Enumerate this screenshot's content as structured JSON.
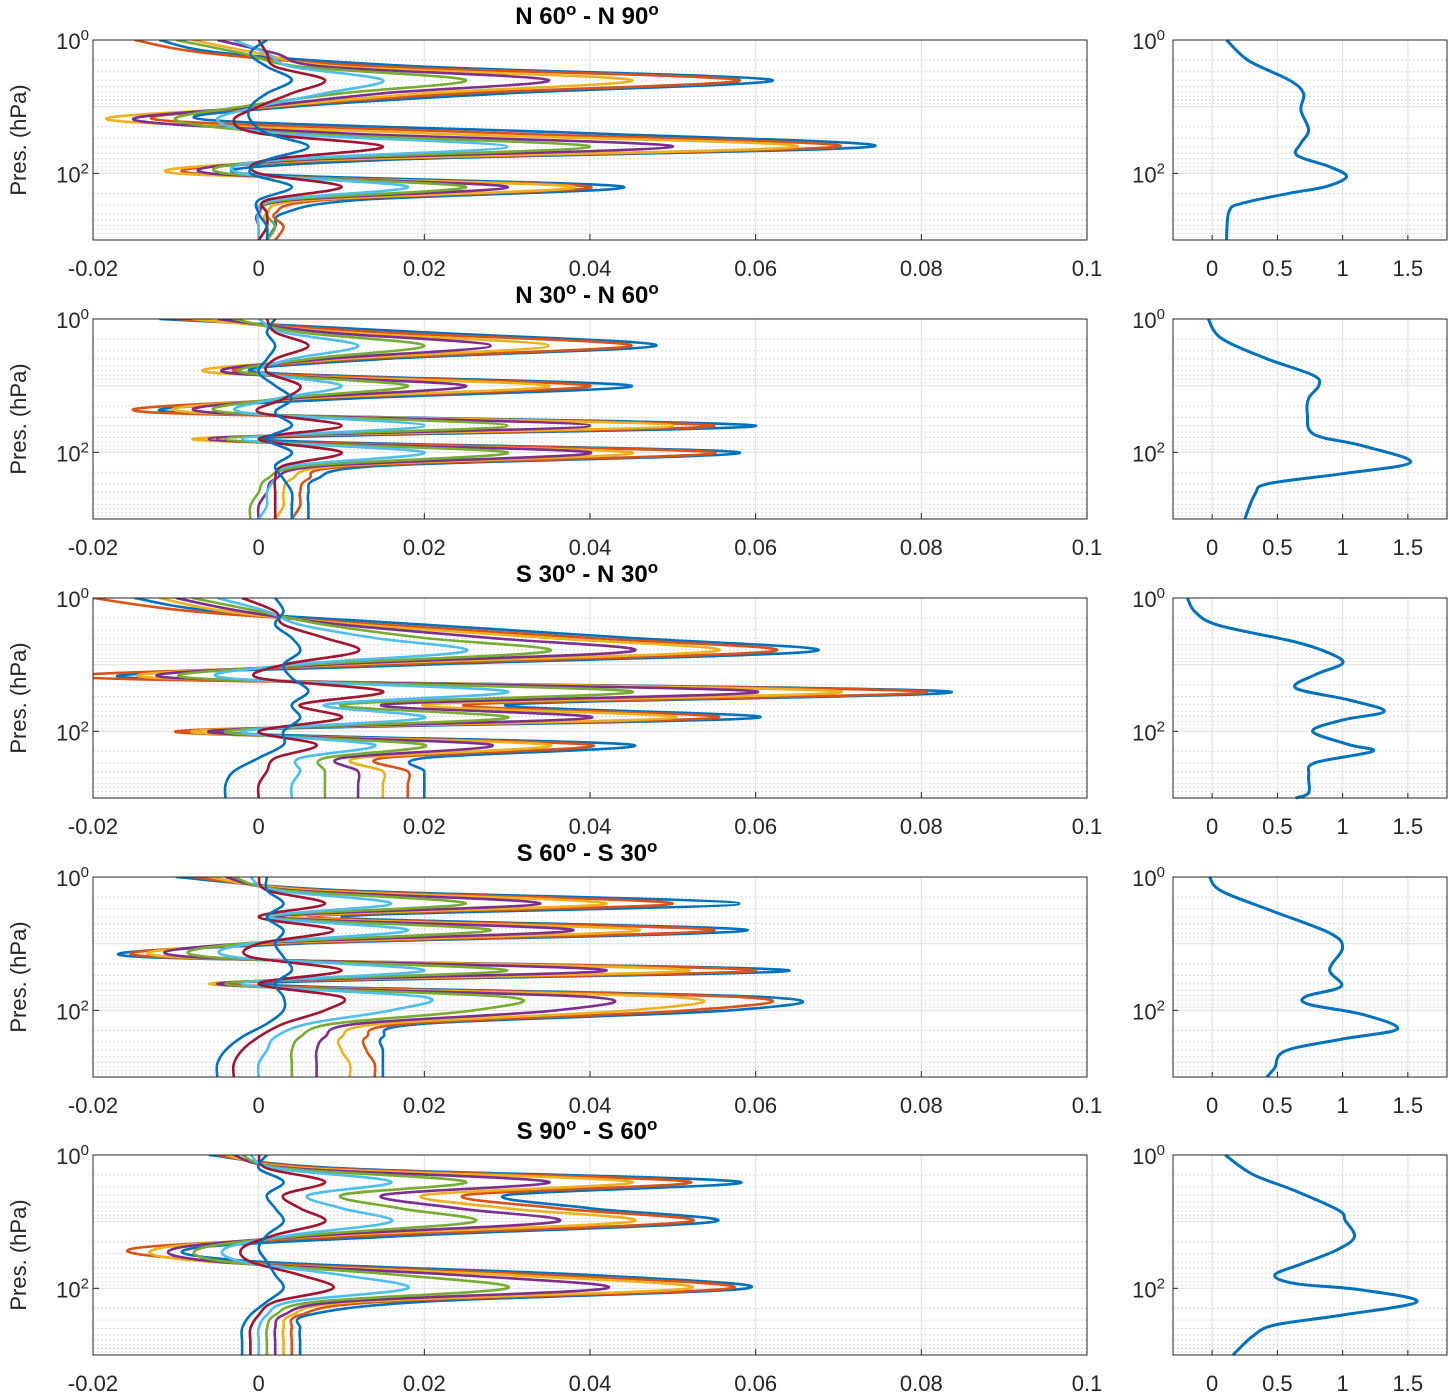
{
  "colors": [
    "#0072BD",
    "#D95319",
    "#EDB120",
    "#7E2F8E",
    "#77AC30",
    "#4DBEEE",
    "#A2142F"
  ],
  "profile_color": "#0072BD",
  "chart_data": {
    "type": "line",
    "ylabel": "Pres. (hPa)",
    "yscale": "log",
    "ylim": [
      1,
      1000
    ],
    "y_reversed": true,
    "ytick_labels": [
      "10^0",
      "10^2"
    ],
    "ytick_values": [
      1,
      100
    ],
    "left_xlim": [
      -0.02,
      0.1
    ],
    "left_xticks": [
      -0.02,
      0,
      0.02,
      0.04,
      0.06,
      0.08,
      0.1
    ],
    "left_xtick_labels": [
      "-0.02",
      "0",
      "0.02",
      "0.04",
      "0.06",
      "0.08",
      "0.1"
    ],
    "right_xlim": [
      -0.3,
      1.8
    ],
    "right_xticks": [
      0,
      0.5,
      1,
      1.5
    ],
    "right_xtick_labels": [
      "0",
      "0.5",
      "1",
      "1.5"
    ],
    "grid": true,
    "log10_pressure_levels": [
      0,
      0.2,
      0.4,
      0.6,
      0.8,
      1.0,
      1.2,
      1.4,
      1.6,
      1.8,
      2.0,
      2.2,
      2.4,
      2.6,
      2.8,
      3.0
    ],
    "panels": [
      {
        "title": "N 60^o - N 90^o",
        "curves": [
          [
            -0.012,
            -0.004,
            0.02,
            0.062,
            0.03,
            0.004,
            -0.006,
            0.04,
            0.074,
            0.015,
            -0.002,
            0.044,
            0.012,
            0.003,
            0.002,
            0.001
          ],
          [
            -0.015,
            -0.006,
            0.015,
            0.058,
            0.025,
            0.002,
            -0.012,
            0.03,
            0.07,
            0.01,
            -0.008,
            0.04,
            0.008,
            0.002,
            0.003,
            0.002
          ],
          [
            -0.008,
            0.0,
            0.01,
            0.045,
            0.02,
            0.001,
            -0.018,
            0.02,
            0.065,
            0.008,
            -0.01,
            0.038,
            0.006,
            0.001,
            0.001,
            0.0
          ],
          [
            -0.005,
            0.002,
            0.008,
            0.035,
            0.015,
            0.0,
            -0.015,
            0.01,
            0.05,
            0.005,
            -0.006,
            0.03,
            0.004,
            0.0,
            0.0,
            0.0
          ],
          [
            -0.01,
            -0.002,
            0.005,
            0.025,
            0.01,
            -0.002,
            -0.01,
            0.004,
            0.04,
            0.003,
            -0.004,
            0.025,
            0.003,
            0.001,
            0.002,
            0.001
          ],
          [
            -0.003,
            0.001,
            0.004,
            0.015,
            0.008,
            0.0,
            -0.005,
            0.002,
            0.03,
            0.002,
            -0.002,
            0.018,
            0.002,
            0.0,
            0.0,
            0.0
          ],
          [
            0.0,
            0.001,
            0.002,
            0.008,
            0.004,
            0.0,
            -0.003,
            0.0,
            0.015,
            0.001,
            0.0,
            0.01,
            0.001,
            0.001,
            0.001,
            0.0
          ],
          [
            0.001,
            -0.001,
            0.001,
            0.004,
            0.001,
            -0.001,
            -0.001,
            0.001,
            0.006,
            0.001,
            -0.001,
            0.004,
            0.0,
            0.0,
            0.001,
            0.001
          ]
        ],
        "profile": {
          "log10_pressure": [
            0,
            0.31,
            0.6,
            0.8,
            1.05,
            1.35,
            1.55,
            1.73,
            1.9,
            2.05,
            2.2,
            2.3,
            2.45,
            2.57,
            3.0
          ],
          "x": [
            0.11,
            0.28,
            0.59,
            0.7,
            0.68,
            0.74,
            0.68,
            0.65,
            0.9,
            1.03,
            0.87,
            0.59,
            0.23,
            0.13,
            0.11
          ]
        }
      },
      {
        "title": "N 30^o - N 60^o",
        "curves": [
          [
            -0.012,
            0.02,
            0.048,
            0.015,
            0.0,
            0.045,
            0.01,
            -0.01,
            0.06,
            0.0,
            0.058,
            0.015,
            0.007,
            0.006,
            0.006,
            0.006
          ],
          [
            -0.01,
            0.015,
            0.045,
            0.012,
            -0.002,
            0.04,
            0.005,
            -0.013,
            0.055,
            -0.005,
            0.055,
            0.012,
            0.006,
            0.005,
            0.005,
            0.004
          ],
          [
            -0.008,
            0.01,
            0.035,
            0.01,
            -0.006,
            0.035,
            0.004,
            -0.008,
            0.05,
            -0.008,
            0.045,
            0.01,
            0.004,
            0.003,
            0.003,
            0.002
          ],
          [
            -0.005,
            0.008,
            0.028,
            0.008,
            -0.004,
            0.025,
            0.003,
            -0.006,
            0.04,
            -0.006,
            0.04,
            0.008,
            0.002,
            0.001,
            0.0,
            0.0
          ],
          [
            -0.003,
            0.005,
            0.02,
            0.006,
            -0.002,
            0.018,
            0.002,
            -0.004,
            0.03,
            -0.004,
            0.03,
            0.006,
            0.001,
            0.0,
            -0.001,
            -0.001
          ],
          [
            0.0,
            0.003,
            0.012,
            0.004,
            0.0,
            0.01,
            0.002,
            -0.002,
            0.02,
            -0.002,
            0.02,
            0.004,
            0.002,
            0.001,
            0.001,
            0.0
          ],
          [
            0.001,
            0.002,
            0.006,
            0.002,
            0.001,
            0.005,
            0.003,
            0.0,
            0.01,
            0.0,
            0.01,
            0.003,
            0.002,
            0.002,
            0.002,
            0.002
          ],
          [
            0.002,
            0.001,
            0.002,
            0.001,
            0.0,
            0.002,
            0.004,
            0.002,
            0.004,
            0.001,
            0.004,
            0.002,
            0.003,
            0.004,
            0.004,
            0.004
          ]
        ],
        "profile": {
          "log10_pressure": [
            0,
            0.29,
            0.59,
            0.84,
            0.99,
            1.19,
            1.43,
            1.73,
            1.9,
            2.15,
            2.32,
            2.47,
            2.62,
            3.0
          ],
          "x": [
            -0.03,
            0.07,
            0.41,
            0.77,
            0.82,
            0.74,
            0.73,
            0.78,
            1.15,
            1.52,
            1.0,
            0.43,
            0.33,
            0.25
          ]
        }
      },
      {
        "title": "S 30^o - N 30^o",
        "curves": [
          [
            -0.015,
            -0.005,
            0.02,
            0.045,
            0.067,
            0.02,
            -0.015,
            0.083,
            0.03,
            0.06,
            -0.005,
            0.045,
            0.02,
            0.02,
            0.02,
            0.02
          ],
          [
            -0.02,
            -0.008,
            0.015,
            0.04,
            0.062,
            0.015,
            -0.02,
            0.08,
            0.025,
            0.055,
            -0.01,
            0.04,
            0.015,
            0.018,
            0.018,
            0.018
          ],
          [
            -0.012,
            -0.004,
            0.012,
            0.035,
            0.055,
            0.01,
            -0.012,
            0.07,
            0.02,
            0.05,
            -0.008,
            0.035,
            0.012,
            0.015,
            0.015,
            0.015
          ],
          [
            -0.01,
            -0.002,
            0.01,
            0.028,
            0.045,
            0.008,
            -0.01,
            0.06,
            0.015,
            0.04,
            -0.006,
            0.028,
            0.01,
            0.012,
            0.012,
            0.012
          ],
          [
            -0.008,
            0.0,
            0.008,
            0.02,
            0.035,
            0.006,
            -0.008,
            0.045,
            0.01,
            0.03,
            -0.004,
            0.02,
            0.008,
            0.008,
            0.008,
            0.008
          ],
          [
            -0.005,
            0.001,
            0.005,
            0.014,
            0.025,
            0.004,
            -0.004,
            0.03,
            0.008,
            0.02,
            -0.002,
            0.014,
            0.005,
            0.005,
            0.004,
            0.004
          ],
          [
            -0.002,
            0.002,
            0.003,
            0.008,
            0.012,
            0.003,
            0.0,
            0.015,
            0.005,
            0.01,
            0.0,
            0.007,
            0.002,
            0.001,
            0.0,
            0.0
          ],
          [
            0.002,
            0.003,
            0.002,
            0.004,
            0.005,
            0.003,
            0.004,
            0.006,
            0.004,
            0.005,
            0.003,
            0.003,
            0.0,
            -0.003,
            -0.004,
            -0.004
          ]
        ],
        "profile": {
          "log10_pressure": [
            0,
            0.21,
            0.41,
            0.66,
            0.83,
            0.98,
            1.15,
            1.35,
            1.53,
            1.7,
            1.83,
            2.0,
            2.2,
            2.3,
            2.47,
            2.65,
            2.92,
            3.0
          ],
          "x": [
            -0.19,
            -0.13,
            0.05,
            0.64,
            0.9,
            1.0,
            0.79,
            0.64,
            1.05,
            1.32,
            1.0,
            0.77,
            1.05,
            1.23,
            0.79,
            0.74,
            0.74,
            0.64
          ]
        }
      },
      {
        "title": "S 60^o - S 30^o",
        "curves": [
          [
            -0.01,
            0.01,
            0.058,
            0.01,
            0.059,
            0.005,
            -0.014,
            0.064,
            0.0,
            0.061,
            0.057,
            0.02,
            0.015,
            0.015,
            0.015,
            0.015
          ],
          [
            -0.008,
            0.008,
            0.05,
            0.006,
            0.055,
            0.002,
            -0.012,
            0.06,
            -0.004,
            0.058,
            0.052,
            0.018,
            0.013,
            0.013,
            0.014,
            0.014
          ],
          [
            -0.006,
            0.006,
            0.042,
            0.004,
            0.046,
            0.0,
            -0.01,
            0.052,
            -0.006,
            0.05,
            0.045,
            0.015,
            0.01,
            0.01,
            0.011,
            0.011
          ],
          [
            -0.004,
            0.004,
            0.034,
            0.002,
            0.038,
            -0.002,
            -0.008,
            0.042,
            -0.005,
            0.04,
            0.036,
            0.012,
            0.008,
            0.007,
            0.007,
            0.007
          ],
          [
            -0.003,
            0.003,
            0.025,
            0.001,
            0.028,
            -0.002,
            -0.006,
            0.03,
            -0.004,
            0.03,
            0.026,
            0.009,
            0.005,
            0.004,
            0.004,
            0.004
          ],
          [
            -0.001,
            0.002,
            0.016,
            0.001,
            0.018,
            -0.001,
            -0.003,
            0.02,
            -0.002,
            0.02,
            0.016,
            0.006,
            0.002,
            0.001,
            0.0,
            0.0
          ],
          [
            0.0,
            0.001,
            0.008,
            0.0,
            0.009,
            0.0,
            -0.001,
            0.01,
            0.0,
            0.01,
            0.008,
            0.003,
            0.0,
            -0.002,
            -0.003,
            -0.003
          ],
          [
            0.001,
            0.001,
            0.003,
            0.001,
            0.003,
            0.002,
            0.003,
            0.004,
            0.002,
            0.003,
            0.003,
            0.001,
            -0.002,
            -0.004,
            -0.005,
            -0.005
          ]
        ],
        "profile": {
          "log10_pressure": [
            0,
            0.21,
            0.51,
            0.84,
            1.06,
            1.39,
            1.64,
            1.79,
            1.91,
            2.06,
            2.28,
            2.43,
            2.61,
            2.86,
            3.0
          ],
          "x": [
            -0.02,
            0.07,
            0.46,
            0.9,
            1.0,
            0.9,
            0.99,
            0.72,
            0.74,
            1.15,
            1.42,
            1.0,
            0.56,
            0.48,
            0.42
          ]
        }
      },
      {
        "title": "S 90^o - S 60^o",
        "curves": [
          [
            -0.006,
            0.01,
            0.058,
            0.03,
            0.04,
            0.055,
            0.02,
            -0.008,
            0.0,
            0.04,
            0.059,
            0.02,
            0.006,
            0.005,
            0.005,
            0.005
          ],
          [
            -0.005,
            0.008,
            0.052,
            0.025,
            0.036,
            0.052,
            0.015,
            -0.015,
            -0.004,
            0.035,
            0.057,
            0.015,
            0.005,
            0.004,
            0.004,
            0.004
          ],
          [
            -0.004,
            0.006,
            0.045,
            0.02,
            0.03,
            0.045,
            0.01,
            -0.012,
            -0.006,
            0.03,
            0.052,
            0.012,
            0.004,
            0.003,
            0.003,
            0.003
          ],
          [
            -0.003,
            0.004,
            0.035,
            0.015,
            0.024,
            0.036,
            0.008,
            -0.01,
            -0.005,
            0.024,
            0.042,
            0.01,
            0.003,
            0.002,
            0.002,
            0.002
          ],
          [
            -0.002,
            0.003,
            0.025,
            0.01,
            0.017,
            0.026,
            0.006,
            -0.007,
            -0.004,
            0.017,
            0.03,
            0.007,
            0.002,
            0.001,
            0.001,
            0.001
          ],
          [
            -0.001,
            0.002,
            0.016,
            0.006,
            0.01,
            0.016,
            0.004,
            -0.004,
            -0.002,
            0.01,
            0.018,
            0.004,
            0.001,
            0.0,
            0.0,
            0.0
          ],
          [
            0.0,
            0.001,
            0.008,
            0.003,
            0.005,
            0.008,
            0.002,
            -0.002,
            -0.001,
            0.005,
            0.009,
            0.002,
            0.0,
            -0.001,
            -0.001,
            -0.001
          ],
          [
            0.001,
            0.0,
            0.003,
            0.001,
            0.002,
            0.003,
            0.001,
            0.0,
            0.001,
            0.002,
            0.003,
            0.001,
            -0.001,
            -0.002,
            -0.002,
            -0.002
          ]
        ],
        "profile": {
          "log10_pressure": [
            0,
            0.29,
            0.54,
            0.83,
            0.98,
            1.23,
            1.43,
            1.63,
            1.8,
            1.93,
            2.02,
            2.2,
            2.4,
            2.55,
            2.72,
            3.0
          ],
          "x": [
            0.1,
            0.31,
            0.64,
            0.97,
            1.02,
            1.09,
            0.95,
            0.69,
            0.48,
            0.64,
            1.13,
            1.57,
            1.0,
            0.48,
            0.31,
            0.16
          ]
        }
      }
    ]
  }
}
